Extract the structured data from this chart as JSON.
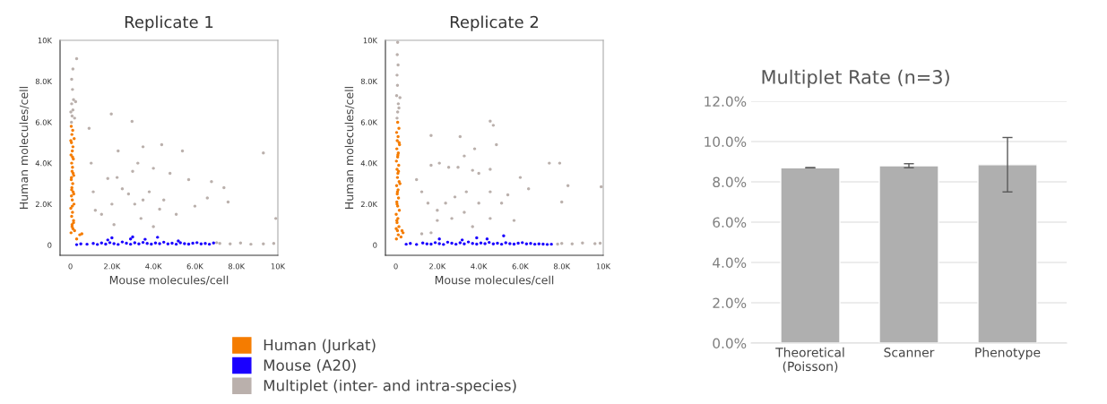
{
  "chart_data": [
    {
      "type": "scatter",
      "title": "Replicate 1",
      "xlabel": "Mouse molecules/cell",
      "ylabel": "Human molecules/cell",
      "xlim": [
        -500,
        10000
      ],
      "ylim": [
        -500,
        10000
      ],
      "xticks": [
        0,
        {
          "value": 2000,
          "label": "2.0K"
        },
        {
          "value": 4000,
          "label": "4.0K"
        },
        {
          "value": 6000,
          "label": "6.0K"
        },
        {
          "value": 8000,
          "label": "8.0K"
        },
        {
          "value": 10000,
          "label": "10K"
        }
      ],
      "yticks": [
        0,
        {
          "value": 2000,
          "label": "2.0K"
        },
        {
          "value": 4000,
          "label": "4.0K"
        },
        {
          "value": 6000,
          "label": "6.0K"
        },
        {
          "value": 8000,
          "label": "8.0K"
        },
        {
          "value": 10000,
          "label": "10K"
        }
      ],
      "grid": false,
      "marker": "circle",
      "legend": "bottom",
      "series": [
        {
          "name": "Human (Jurkat)",
          "color": "#f57c00",
          "x": [
            30,
            120,
            80,
            150,
            60,
            100,
            20,
            170,
            90,
            50,
            130,
            70,
            110,
            40,
            160,
            80,
            100,
            60,
            140,
            30,
            90,
            120,
            50,
            180,
            70,
            110,
            40,
            150,
            90,
            60,
            130,
            100,
            20,
            80,
            160,
            50,
            200,
            300,
            450,
            550
          ],
          "values": [
            600,
            800,
            1000,
            1200,
            1400,
            1600,
            1800,
            2000,
            2200,
            2400,
            2600,
            2800,
            3000,
            3200,
            3400,
            3600,
            3800,
            4000,
            4200,
            4400,
            4600,
            4800,
            5000,
            5200,
            5400,
            5600,
            5800,
            1100,
            1900,
            2700,
            3500,
            4300,
            5100,
            900,
            2500,
            3300,
            700,
            300,
            500,
            550
          ]
        },
        {
          "name": "Mouse (A20)",
          "color": "#1a00ff",
          "x": [
            300,
            500,
            800,
            1100,
            1300,
            1500,
            1700,
            1900,
            2100,
            2300,
            2500,
            2700,
            2900,
            3100,
            3300,
            3500,
            3700,
            3900,
            4100,
            4300,
            4500,
            4700,
            4900,
            5100,
            5300,
            5500,
            5700,
            5900,
            6100,
            6300,
            6500,
            6700,
            6900,
            2000,
            2900,
            3000,
            4200,
            1800,
            3600,
            5200
          ],
          "values": [
            20,
            60,
            40,
            80,
            30,
            100,
            50,
            120,
            70,
            30,
            150,
            90,
            40,
            110,
            60,
            130,
            80,
            50,
            100,
            70,
            140,
            60,
            90,
            40,
            110,
            70,
            50,
            90,
            120,
            60,
            80,
            40,
            100,
            350,
            300,
            400,
            380,
            250,
            280,
            200
          ]
        },
        {
          "name": "Multiplet (inter- and intra-species)",
          "color": "#bab0ac",
          "x": [
            50,
            80,
            120,
            60,
            150,
            250,
            100,
            60,
            120,
            300,
            20,
            200,
            900,
            1970,
            2970,
            4400,
            2300,
            3500,
            5400,
            9300,
            1800,
            2250,
            3000,
            3250,
            4000,
            4800,
            5700,
            6800,
            7400,
            7600,
            2500,
            2800,
            3100,
            3500,
            3800,
            4300,
            4500,
            5100,
            2000,
            1500,
            2100,
            3400,
            4000,
            6000,
            6600,
            9900,
            1200,
            1100,
            1000,
            7200,
            7700,
            8200,
            8700,
            9300,
            9800,
            7050
          ],
          "values": [
            6000,
            6300,
            6600,
            6900,
            7100,
            7000,
            7600,
            8100,
            8600,
            9100,
            6500,
            6200,
            5700,
            6400,
            6040,
            4900,
            4600,
            4800,
            4600,
            4500,
            3250,
            3300,
            3600,
            4000,
            3750,
            3500,
            3200,
            3100,
            2800,
            2100,
            2750,
            2500,
            2000,
            2200,
            2600,
            1750,
            2200,
            1500,
            2000,
            1500,
            1000,
            1300,
            900,
            1900,
            2300,
            1300,
            1700,
            2600,
            4000,
            80,
            60,
            100,
            40,
            60,
            80,
            120
          ]
        }
      ]
    },
    {
      "type": "scatter",
      "title": "Replicate 2",
      "xlabel": "Mouse molecules/cell",
      "ylabel": "Human molecules/cell",
      "xlim": [
        -500,
        10000
      ],
      "ylim": [
        -500,
        10000
      ],
      "xticks": [
        0,
        {
          "value": 2000,
          "label": "2.0K"
        },
        {
          "value": 4000,
          "label": "4.0K"
        },
        {
          "value": 6000,
          "label": "6.0K"
        },
        {
          "value": 8000,
          "label": "8.0K"
        },
        {
          "value": 10000,
          "label": "10K"
        }
      ],
      "yticks": [
        0,
        {
          "value": 2000,
          "label": "2.0K"
        },
        {
          "value": 4000,
          "label": "4.0K"
        },
        {
          "value": 6000,
          "label": "6.0K"
        },
        {
          "value": 8000,
          "label": "8.0K"
        },
        {
          "value": 10000,
          "label": "10K"
        }
      ],
      "grid": false,
      "marker": "circle",
      "series": [
        {
          "color": "#f57c00",
          "x": [
            30,
            120,
            80,
            150,
            60,
            100,
            20,
            170,
            90,
            50,
            130,
            70,
            110,
            40,
            160,
            80,
            100,
            60,
            140,
            30,
            90,
            120,
            50,
            180,
            70,
            110,
            40,
            150,
            90,
            60,
            130,
            100,
            20,
            80,
            160,
            50,
            200,
            300,
            350,
            250
          ],
          "values": [
            300,
            500,
            700,
            900,
            1100,
            1300,
            1500,
            1700,
            1900,
            2100,
            2300,
            2500,
            2700,
            2900,
            3100,
            3300,
            3500,
            3700,
            3900,
            4100,
            4300,
            4500,
            4700,
            4900,
            5100,
            5300,
            5500,
            5700,
            6000,
            2000,
            3600,
            4400,
            800,
            2600,
            5000,
            1200,
            3000,
            700,
            600,
            400
          ]
        },
        {
          "color": "#1a00ff",
          "x": [
            500,
            700,
            1000,
            1300,
            1500,
            1700,
            1900,
            2100,
            2300,
            2500,
            2700,
            2900,
            3100,
            3300,
            3500,
            3700,
            3900,
            4100,
            4300,
            4500,
            4700,
            4900,
            5100,
            5300,
            5500,
            5700,
            5900,
            6100,
            6300,
            6500,
            6700,
            6900,
            7100,
            7300,
            7500,
            2100,
            3900,
            5200,
            4400,
            3200
          ],
          "values": [
            40,
            80,
            30,
            100,
            60,
            50,
            120,
            70,
            30,
            140,
            90,
            40,
            110,
            60,
            150,
            80,
            50,
            100,
            70,
            130,
            60,
            90,
            40,
            110,
            70,
            50,
            90,
            120,
            60,
            80,
            40,
            60,
            50,
            30,
            40,
            300,
            350,
            450,
            300,
            250
          ]
        },
        {
          "color": "#bab0ac",
          "x": [
            60,
            90,
            120,
            40,
            200,
            80,
            60,
            110,
            70,
            90,
            150,
            4550,
            4700,
            1700,
            3100,
            4850,
            3800,
            3300,
            1700,
            2100,
            2550,
            3000,
            3700,
            4000,
            4550,
            7400,
            7900,
            8300,
            9900,
            8000,
            6400,
            6000,
            5400,
            5100,
            4550,
            4000,
            3400,
            2850,
            2400,
            2000,
            1550,
            1250,
            1000,
            2000,
            2700,
            3700,
            4550,
            5700,
            3300,
            1250,
            1700,
            8000,
            8500,
            9000,
            9600,
            9850,
            7800
          ],
          "values": [
            6200,
            6500,
            6900,
            7300,
            7200,
            7800,
            8300,
            8800,
            9300,
            9900,
            6700,
            6050,
            5850,
            5350,
            5300,
            4900,
            4700,
            4350,
            3900,
            4000,
            3800,
            3800,
            3650,
            3500,
            3700,
            4000,
            4000,
            2900,
            2850,
            2100,
            2750,
            3300,
            2450,
            2050,
            2600,
            2050,
            2600,
            2350,
            2050,
            1700,
            2050,
            2600,
            3200,
            1200,
            1300,
            900,
            1300,
            1200,
            1600,
            550,
            600,
            80,
            60,
            100,
            70,
            90,
            50
          ]
        }
      ]
    },
    {
      "type": "bar",
      "title": "Multiplet Rate (n=3)",
      "categories": [
        "Theoretical\n(Poisson)",
        "Scanner",
        "Phenotype"
      ],
      "values": [
        8.7,
        8.8,
        8.85
      ],
      "errors": [
        0,
        0.1,
        1.35
      ],
      "color": "#afafaf",
      "ylim": [
        0,
        12
      ],
      "yticks": [
        {
          "value": 0,
          "label": "0.0%"
        },
        {
          "value": 2,
          "label": "2.0%"
        },
        {
          "value": 4,
          "label": "4.0%"
        },
        {
          "value": 6,
          "label": "6.0%"
        },
        {
          "value": 8,
          "label": "8.0%"
        },
        {
          "value": 10,
          "label": "10.0%"
        },
        {
          "value": 12,
          "label": "12.0%"
        }
      ],
      "grid": "y"
    }
  ]
}
